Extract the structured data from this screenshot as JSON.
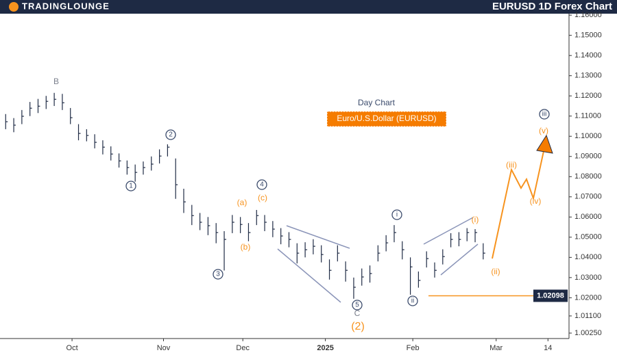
{
  "brand": "TradingLounge",
  "chart_data": {
    "type": "ohlc",
    "title": "EURUSD 1D Forex Chart",
    "subtitle": "Day Chart",
    "instrument": "Euro/U.S.Dollar (EURUSD)",
    "color": "#1e2a44",
    "close": [
      1.1072,
      1.1055,
      1.1099,
      1.1139,
      1.1149,
      1.1173,
      1.1183,
      1.1166,
      1.1092,
      1.1014,
      1.1004,
      1.097,
      1.0946,
      1.0912,
      1.0878,
      1.0845,
      1.0821,
      1.0845,
      1.0862,
      1.0902,
      1.0946,
      1.076,
      1.0675,
      1.0607,
      1.0574,
      1.0557,
      1.0523,
      1.0489,
      1.0574,
      1.0563,
      1.0523,
      1.0607,
      1.0574,
      1.054,
      1.0506,
      1.0489,
      1.0421,
      1.0438,
      1.0455,
      1.0414,
      1.0336,
      1.0421,
      1.0336,
      1.0252,
      1.0303,
      1.032,
      1.0421,
      1.0472,
      1.0523,
      1.0438,
      1.0353,
      1.0286,
      1.0394,
      1.0336,
      1.0404,
      1.0489,
      1.0489,
      1.0523,
      1.0523,
      1.0421
    ],
    "high": [
      1.111,
      1.109,
      1.113,
      1.117,
      1.1185,
      1.12,
      1.1215,
      1.121,
      1.114,
      1.106,
      1.1035,
      1.101,
      1.098,
      1.095,
      1.0915,
      1.088,
      1.086,
      1.0875,
      1.09,
      1.0935,
      1.096,
      1.089,
      1.074,
      1.066,
      1.062,
      1.06,
      1.057,
      1.053,
      1.061,
      1.06,
      1.057,
      1.0635,
      1.061,
      1.058,
      1.0545,
      1.0525,
      1.047,
      1.0475,
      1.049,
      1.046,
      1.039,
      1.046,
      1.038,
      1.03,
      1.0345,
      1.036,
      1.046,
      1.051,
      1.056,
      1.048,
      1.04,
      1.033,
      1.043,
      1.0375,
      1.044,
      1.052,
      1.0525,
      1.0545,
      1.054,
      1.047
    ],
    "low": [
      1.1035,
      1.102,
      1.106,
      1.11,
      1.1115,
      1.1135,
      1.115,
      1.113,
      1.106,
      1.098,
      1.0975,
      1.094,
      1.091,
      1.088,
      1.0845,
      1.081,
      1.0775,
      1.081,
      1.083,
      1.0865,
      1.09,
      1.069,
      1.062,
      1.056,
      1.0535,
      1.051,
      1.047,
      1.0335,
      1.052,
      1.052,
      1.048,
      1.056,
      1.053,
      1.05,
      1.0465,
      1.045,
      1.037,
      1.04,
      1.0415,
      1.0375,
      1.029,
      1.038,
      1.028,
      1.0195,
      1.026,
      1.0275,
      1.038,
      1.043,
      1.0475,
      1.039,
      1.0215,
      1.025,
      1.035,
      1.03,
      1.0365,
      1.045,
      1.0455,
      1.048,
      1.0475,
      1.039
    ],
    "xlim": [
      -0.7,
      69.6
    ],
    "xticks": [
      {
        "value": 8.2,
        "label": "Oct"
      },
      {
        "value": 19.5,
        "label": "Nov"
      },
      {
        "value": 29.3,
        "label": "Dec"
      },
      {
        "value": 39.5,
        "label": "2025"
      },
      {
        "value": 50.3,
        "label": "Feb"
      },
      {
        "value": 60.6,
        "label": "Mar"
      },
      {
        "value": 67.0,
        "label": "14"
      }
    ],
    "ylim": [
      0.9998,
      1.1675
    ],
    "yticks": [
      {
        "value": 1.16,
        "label": "1.16000"
      },
      {
        "value": 1.15,
        "label": "1.15000"
      },
      {
        "value": 1.14,
        "label": "1.14000"
      },
      {
        "value": 1.13,
        "label": "1.13000"
      },
      {
        "value": 1.12,
        "label": "1.12000"
      },
      {
        "value": 1.11,
        "label": "1.11000"
      },
      {
        "value": 1.1,
        "label": "1.10000"
      },
      {
        "value": 1.09,
        "label": "1.09000"
      },
      {
        "value": 1.08,
        "label": "1.08000"
      },
      {
        "value": 1.07,
        "label": "1.07000"
      },
      {
        "value": 1.06,
        "label": "1.06000"
      },
      {
        "value": 1.05,
        "label": "1.05000"
      },
      {
        "value": 1.04,
        "label": "1.04000"
      },
      {
        "value": 1.03,
        "label": "1.03000"
      },
      {
        "value": 1.02,
        "label": "1.02000"
      },
      {
        "value": 1.011,
        "label": "1.01100"
      },
      {
        "value": 1.0025,
        "label": "1.00250"
      }
    ],
    "price_line": {
      "value": 1.02098,
      "label": "1.02098",
      "color": "#f7931e"
    },
    "wave_labels": [
      "B",
      "1",
      "2",
      "3",
      "4",
      "(a)",
      "(b)",
      "(c)",
      "i",
      "5",
      "C",
      "(2)",
      "(i)",
      "ii",
      "(ii)",
      "(iii)",
      "(iv)",
      "(v)",
      "iii"
    ]
  }
}
